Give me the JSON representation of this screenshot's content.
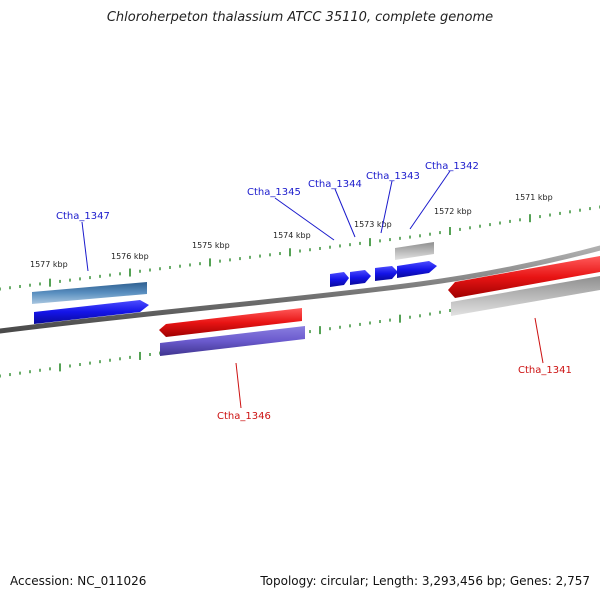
{
  "title": "Chloroherpeton thalassium ATCC 35110, complete genome",
  "footer": {
    "accession": "Accession: NC_011026",
    "topology": "Topology: circular; Length: 3,293,456 bp; Genes: 2,757"
  },
  "colors": {
    "backbone": "#8a8a8a",
    "tick": "#2a8a2a",
    "forward_label": "#1a1acc",
    "reverse_label": "#cc1111",
    "gene_blue": "#1414e8",
    "gene_steelblue": "#4a7fb5",
    "gene_red": "#e81414",
    "gene_slate": "#6a5acd",
    "gene_grey": "#b0b0b0"
  },
  "kbp_labels": [
    "1577 kbp",
    "1576 kbp",
    "1575 kbp",
    "1574 kbp",
    "1573 kbp",
    "1572 kbp",
    "1571 kbp"
  ],
  "genes": [
    {
      "id": "Ctha_1347",
      "strand": "forward",
      "labeled": true
    },
    {
      "id": "Ctha_1345",
      "strand": "forward",
      "labeled": true
    },
    {
      "id": "Ctha_1344",
      "strand": "forward",
      "labeled": true
    },
    {
      "id": "Ctha_1343",
      "strand": "forward",
      "labeled": true
    },
    {
      "id": "Ctha_1342",
      "strand": "forward",
      "labeled": true
    },
    {
      "id": "Ctha_1346",
      "strand": "reverse",
      "labeled": true
    },
    {
      "id": "Ctha_1341",
      "strand": "reverse",
      "labeled": true
    }
  ]
}
